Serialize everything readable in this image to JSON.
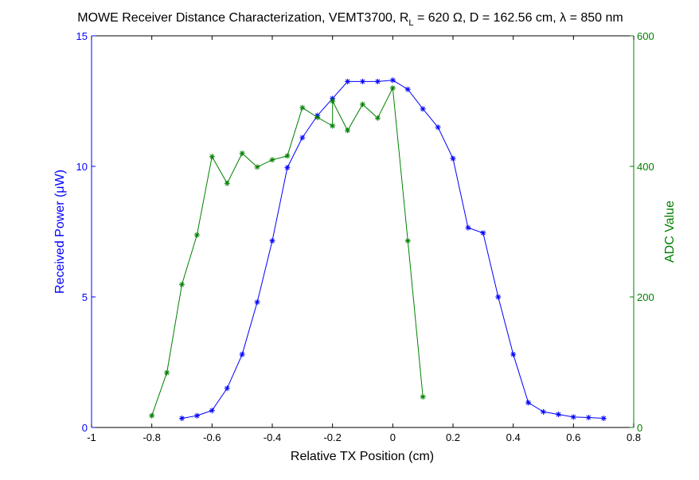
{
  "chart_data": {
    "type": "line",
    "title": {
      "main": "MOWE Receiver Distance Characterization, VEMT3700, R",
      "sub_L": "L",
      "rest_a": " = 620 ",
      "omega": "Ω",
      "rest_b": ", D = 162.56 cm, ",
      "lambda": "λ",
      "rest_c": " = 850 nm"
    },
    "xlabel": "Relative TX Position (cm)",
    "ylabel_left": {
      "prefix": "Received Power (",
      "mu": "μ",
      "suffix": "W)"
    },
    "ylabel_right": "ADC Value",
    "xlim": [
      -1,
      0.8
    ],
    "ylim_left": [
      0,
      15
    ],
    "ylim_right": [
      0,
      600
    ],
    "xticks": [
      "-1",
      "-0.8",
      "-0.6",
      "-0.4",
      "-0.2",
      "0",
      "0.2",
      "0.4",
      "0.6",
      "0.8"
    ],
    "yticks_left": [
      "0",
      "5",
      "10",
      "15"
    ],
    "yticks_right": [
      "0",
      "200",
      "400",
      "600"
    ],
    "grid": false,
    "colors": {
      "left_axis": "#0000ff",
      "right_axis": "#008000",
      "axes": "#000000"
    },
    "series": [
      {
        "axis": "left",
        "marker": "*",
        "color": "#0000ff",
        "x": [
          -0.7,
          -0.65,
          -0.6,
          -0.55,
          -0.5,
          -0.45,
          -0.4,
          -0.35,
          -0.3,
          -0.25,
          -0.2,
          -0.15,
          -0.1,
          -0.05,
          0,
          0.05,
          0.1,
          0.15,
          0.2,
          0.25,
          0.3,
          0.35,
          0.4,
          0.45,
          0.5,
          0.55,
          0.6,
          0.65,
          0.7
        ],
        "y": [
          0.35,
          0.45,
          0.65,
          1.5,
          2.8,
          4.8,
          7.15,
          9.95,
          11.1,
          11.95,
          12.6,
          13.25,
          13.25,
          13.25,
          13.3,
          12.95,
          12.2,
          11.5,
          10.3,
          7.65,
          7.45,
          5.0,
          2.8,
          0.95,
          0.6,
          0.5,
          0.4,
          0.38,
          0.35
        ]
      },
      {
        "axis": "right",
        "marker": "*",
        "color": "#008000",
        "x": [
          -0.8,
          -0.75,
          -0.7,
          -0.65,
          -0.6,
          -0.55,
          -0.5,
          -0.45,
          -0.4,
          -0.35,
          -0.3,
          -0.25,
          -0.2,
          -0.2,
          -0.15,
          -0.1,
          -0.05,
          0,
          0.05,
          0.1
        ],
        "y": [
          18,
          84,
          219,
          295,
          415,
          374,
          420,
          399,
          410,
          416,
          490,
          475,
          462,
          500,
          455,
          495,
          474,
          520,
          286,
          47
        ]
      }
    ]
  }
}
